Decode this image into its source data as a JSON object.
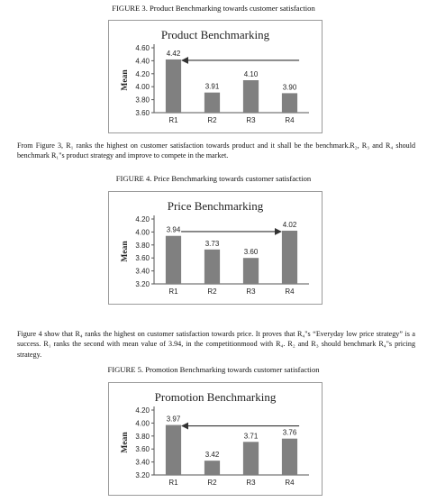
{
  "figure3": {
    "caption": "FIGURE 3. Product Benchmarking towards customer satisfaction"
  },
  "paragraph1": {
    "text": "From Figure 3, R₁ ranks the highest on customer satisfaction towards product and it shall be the benchmark.R₂, R₃ and R₄ should benchmark R₁\"s product strategy and improve to compete in the market."
  },
  "figure4": {
    "caption": "FIGURE 4. Price Benchmarking towards customer satisfaction"
  },
  "paragraph2": {
    "text": "Figure 4 show that R₄ ranks the highest on customer satisfaction towards price. It proves that R₄\"s “Everyday low price strategy” is a success. R₁ ranks the second with mean value of 3.94, in the competitionmood with R₄. R₂ and R₃ should benchmark R₄\"s pricing strategy."
  },
  "figure5": {
    "caption": "FIGURE 5. Promotion Benchmarking towards customer satisfaction"
  },
  "colors": {
    "bar": "#808080",
    "arrow": "#333333",
    "frame": "#9a9a9a"
  },
  "chart_data": [
    {
      "type": "bar",
      "title": "Product Benchmarking",
      "xlabel": "",
      "ylabel": "Mean",
      "categories": [
        "R1",
        "R2",
        "R3",
        "R4"
      ],
      "values": [
        4.42,
        3.91,
        4.1,
        3.9
      ],
      "value_labels": [
        "4.42",
        "3.91",
        "4.10",
        "3.90"
      ],
      "ylim": [
        3.6,
        4.6
      ],
      "yticks": [
        "3.60",
        "3.80",
        "4.00",
        "4.20",
        "4.40",
        "4.60"
      ],
      "arrow": {
        "from": "R4",
        "to": "R1",
        "direction": "left"
      },
      "grid": false
    },
    {
      "type": "bar",
      "title": "Price Benchmarking",
      "xlabel": "",
      "ylabel": "Mean",
      "categories": [
        "R1",
        "R2",
        "R3",
        "R4"
      ],
      "values": [
        3.94,
        3.73,
        3.6,
        4.02
      ],
      "value_labels": [
        "3.94",
        "3.73",
        "3.60",
        "4.02"
      ],
      "ylim": [
        3.2,
        4.2
      ],
      "yticks": [
        "3.20",
        "3.40",
        "3.60",
        "3.80",
        "4.00",
        "4.20"
      ],
      "arrow": {
        "from": "R1",
        "to": "R4",
        "direction": "right"
      },
      "grid": false
    },
    {
      "type": "bar",
      "title": "Promotion Benchmarking",
      "xlabel": "",
      "ylabel": "Mean",
      "categories": [
        "R1",
        "R2",
        "R3",
        "R4"
      ],
      "values": [
        3.97,
        3.42,
        3.71,
        3.76
      ],
      "value_labels": [
        "3.97",
        "3.42",
        "3.71",
        "3.76"
      ],
      "ylim": [
        3.2,
        4.2
      ],
      "yticks": [
        "3.20",
        "3.40",
        "3.60",
        "3.80",
        "4.00",
        "4.20"
      ],
      "arrow": {
        "from": "R4",
        "to": "R1",
        "direction": "left"
      },
      "grid": false
    }
  ]
}
